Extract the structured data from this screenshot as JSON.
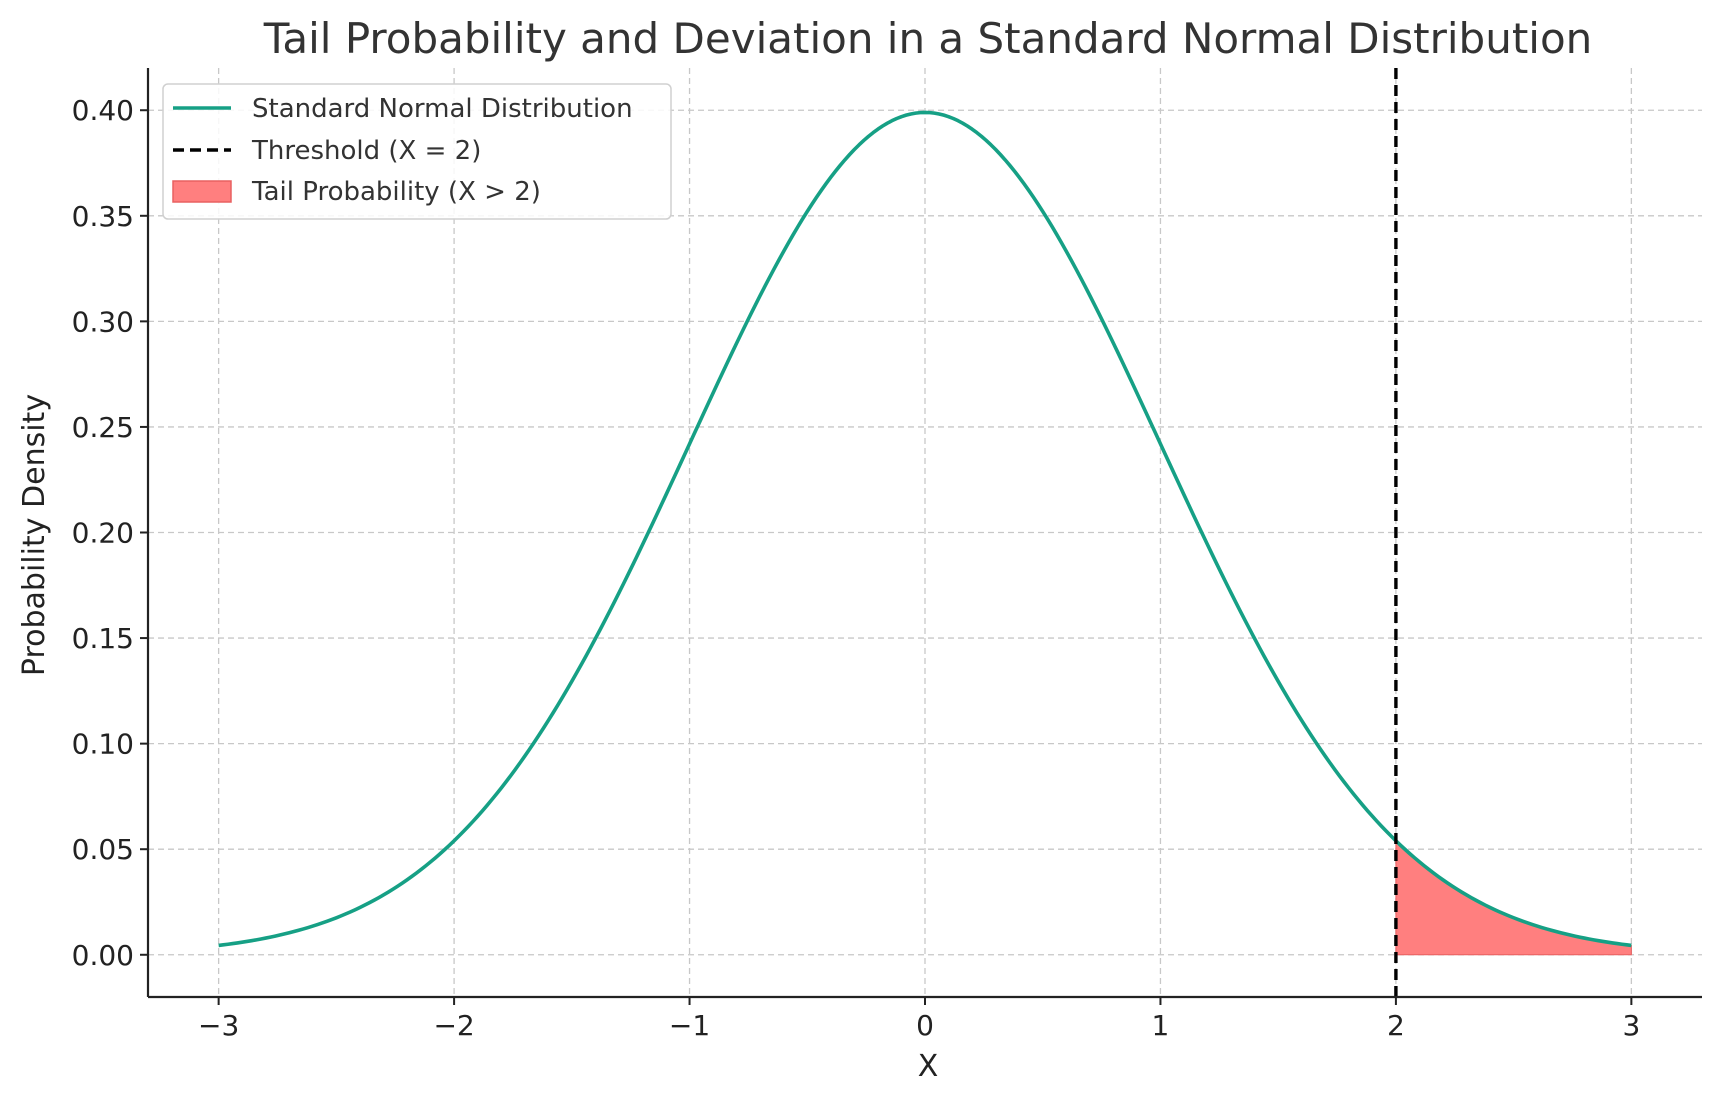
{
  "chart_data": {
    "type": "line",
    "title": "Tail Probability and Deviation in a Standard Normal Distribution",
    "xlabel": "X",
    "ylabel": "Probability Density",
    "xlim": [
      -3.3,
      3.3
    ],
    "ylim": [
      -0.02,
      0.42
    ],
    "x_ticks": [
      -3,
      -2,
      -1,
      0,
      1,
      2,
      3
    ],
    "x_tick_labels": [
      "−3",
      "−2",
      "−1",
      "0",
      "1",
      "2",
      "3"
    ],
    "y_ticks": [
      0.0,
      0.05,
      0.1,
      0.15,
      0.2,
      0.25,
      0.3,
      0.35,
      0.4
    ],
    "y_tick_labels": [
      "0.00",
      "0.05",
      "0.10",
      "0.15",
      "0.20",
      "0.25",
      "0.30",
      "0.35",
      "0.40"
    ],
    "grid": true,
    "legend_position": "top-left",
    "series": [
      {
        "name": "Standard Normal Distribution",
        "kind": "line",
        "color": "#16a085",
        "x": [
          -3.0,
          -2.75,
          -2.5,
          -2.25,
          -2.0,
          -1.75,
          -1.5,
          -1.25,
          -1.0,
          -0.75,
          -0.5,
          -0.25,
          0.0,
          0.25,
          0.5,
          0.75,
          1.0,
          1.25,
          1.5,
          1.75,
          2.0,
          2.25,
          2.5,
          2.75,
          3.0
        ],
        "y": [
          0.0044,
          0.0091,
          0.0175,
          0.0317,
          0.054,
          0.0863,
          0.1295,
          0.1826,
          0.242,
          0.3011,
          0.3521,
          0.3867,
          0.3989,
          0.3867,
          0.3521,
          0.3011,
          0.242,
          0.1826,
          0.1295,
          0.0863,
          0.054,
          0.0317,
          0.0175,
          0.0091,
          0.0044
        ]
      },
      {
        "name": "Threshold (X = 2)",
        "kind": "vline",
        "x": 2,
        "color": "#000000"
      },
      {
        "name": "Tail Probability (X > 2)",
        "kind": "area",
        "x_from": 2,
        "x_to": 3,
        "color": "#ff7f7f",
        "edge_color": "#e86060"
      }
    ]
  }
}
